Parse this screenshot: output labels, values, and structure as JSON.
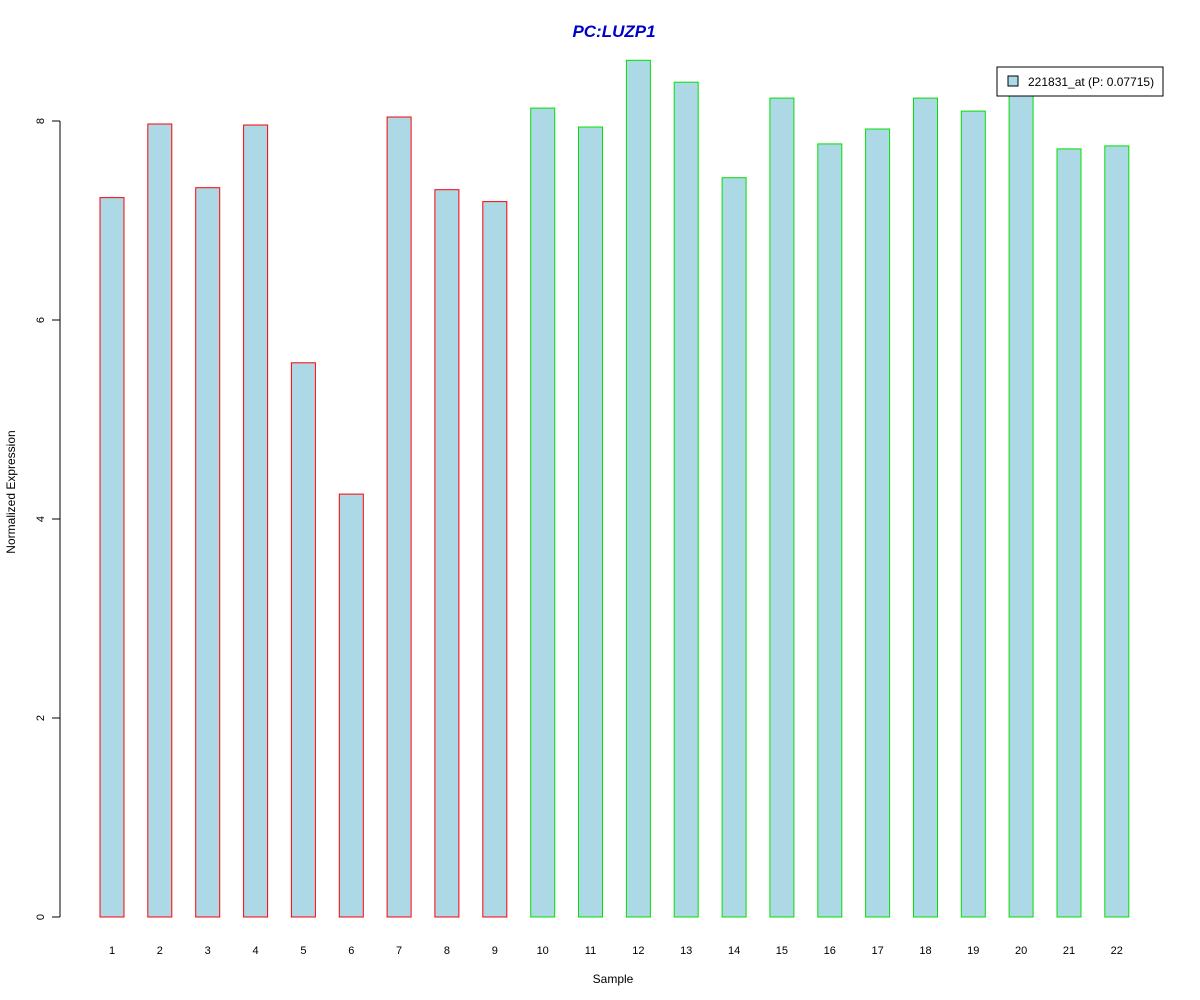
{
  "chart_data": {
    "type": "bar",
    "title": "PC:LUZP1",
    "xlabel": "Sample",
    "ylabel": "Normalized Expression",
    "categories": [
      "1",
      "2",
      "3",
      "4",
      "5",
      "6",
      "7",
      "8",
      "9",
      "10",
      "11",
      "12",
      "13",
      "14",
      "15",
      "16",
      "17",
      "18",
      "19",
      "20",
      "21",
      "22"
    ],
    "series": [
      {
        "name": "221831_at (P: 0.07715)",
        "values": [
          7.23,
          7.97,
          7.33,
          7.96,
          5.57,
          4.25,
          8.04,
          7.31,
          7.19,
          8.13,
          7.94,
          8.61,
          8.39,
          7.43,
          8.23,
          7.77,
          7.92,
          8.23,
          8.1,
          8.29,
          7.72,
          7.75
        ]
      }
    ],
    "groups": [
      {
        "start_category": "1",
        "end_category": "9",
        "border_color": "#ff0000"
      },
      {
        "start_category": "10",
        "end_category": "22",
        "border_color": "#00e000"
      }
    ],
    "bar_fill": "#add8e6",
    "title_color": "#0000cc",
    "yticks": [
      0,
      2,
      4,
      6,
      8
    ],
    "ylim": [
      0,
      8.61
    ],
    "grid": false,
    "legend_position": "top-right"
  }
}
